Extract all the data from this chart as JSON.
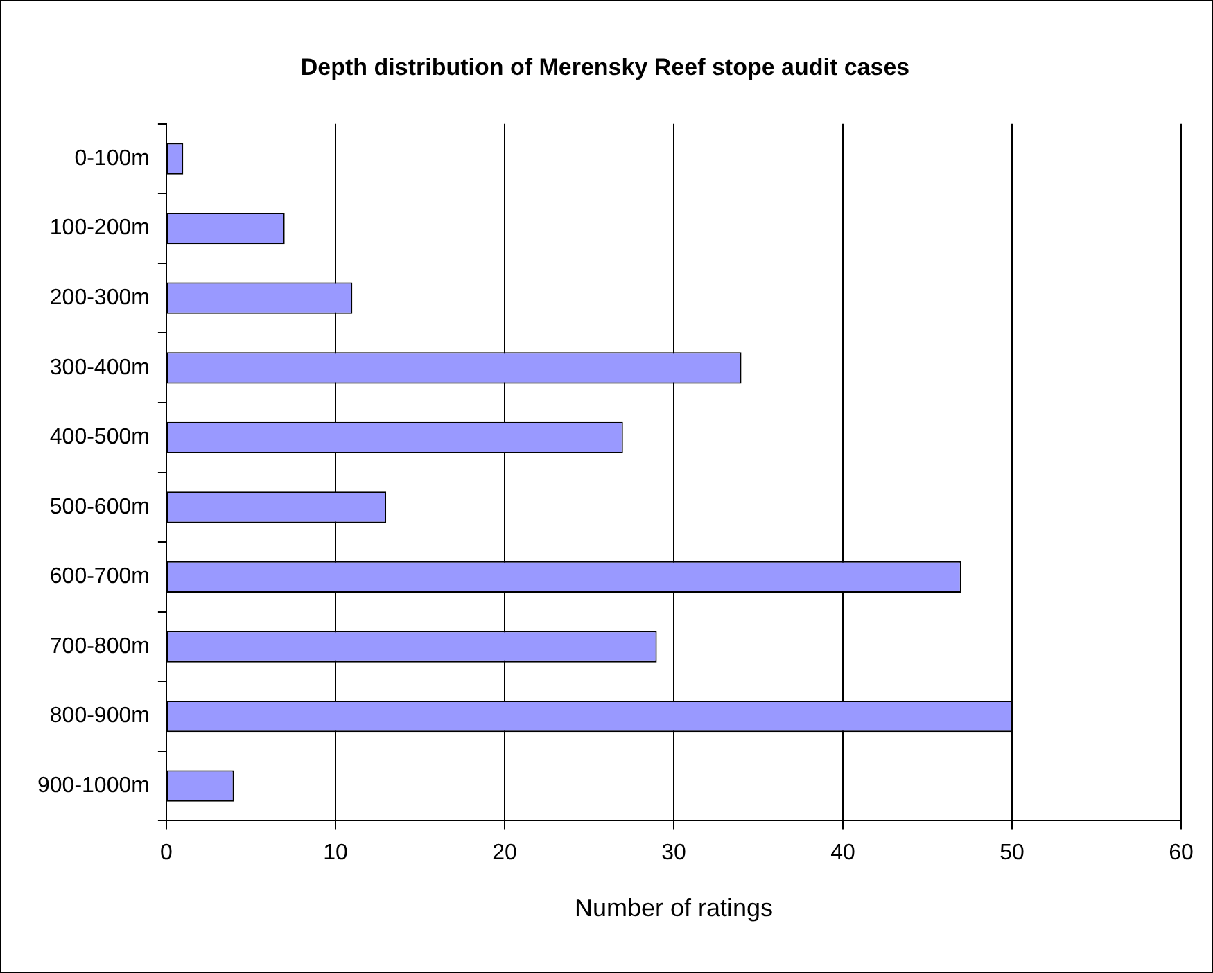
{
  "chart_data": {
    "type": "bar",
    "orientation": "horizontal",
    "title": "Depth distribution of Merensky Reef stope audit cases",
    "xlabel": "Number of ratings",
    "categories": [
      "0-100m",
      "100-200m",
      "200-300m",
      "300-400m",
      "400-500m",
      "500-600m",
      "600-700m",
      "700-800m",
      "800-900m",
      "900-1000m"
    ],
    "values": [
      1,
      7,
      11,
      34,
      27,
      13,
      47,
      29,
      50,
      4
    ],
    "color": "#9999ff",
    "xlim": [
      0,
      60
    ],
    "xticks": [
      0,
      10,
      20,
      30,
      40,
      50,
      60
    ],
    "grid": "x",
    "legend": false
  }
}
